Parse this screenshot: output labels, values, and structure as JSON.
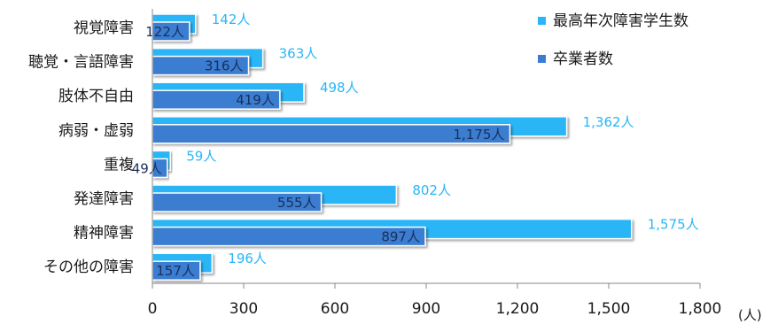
{
  "chart_data": {
    "type": "bar",
    "orientation": "horizontal",
    "categories": [
      "視覚障害",
      "聴覚・言語障害",
      "肢体不自由",
      "病弱・虚弱",
      "重複",
      "発達障害",
      "精神障害",
      "その他の障害"
    ],
    "series": [
      {
        "name": "最高年次障害学生数",
        "values": [
          142,
          363,
          498,
          1362,
          59,
          802,
          1575,
          196
        ],
        "labels": [
          "142人",
          "363人",
          "498人",
          "1,362人",
          "59人",
          "802人",
          "1,575人",
          "196人"
        ]
      },
      {
        "name": "卒業者数",
        "values": [
          122,
          316,
          419,
          1175,
          49,
          555,
          897,
          157
        ],
        "labels": [
          "122人",
          "316人",
          "419人",
          "1,175人",
          "49人",
          "555人",
          "897人",
          "157人"
        ]
      }
    ],
    "xlim": [
      0,
      1800
    ],
    "xticks": [
      0,
      300,
      600,
      900,
      1200,
      1500,
      1800
    ],
    "xtick_labels": [
      "0",
      "300",
      "600",
      "900",
      "1,200",
      "1,500",
      "1,800"
    ],
    "unit": "(人)",
    "grid": false,
    "legend_position": "top-right",
    "colors": {
      "series1": "#29b6f6",
      "series2": "#3a7dd0",
      "series1_label": "#29b6f6",
      "series2_label": "#1a2f5a",
      "axis": "#888888"
    }
  }
}
